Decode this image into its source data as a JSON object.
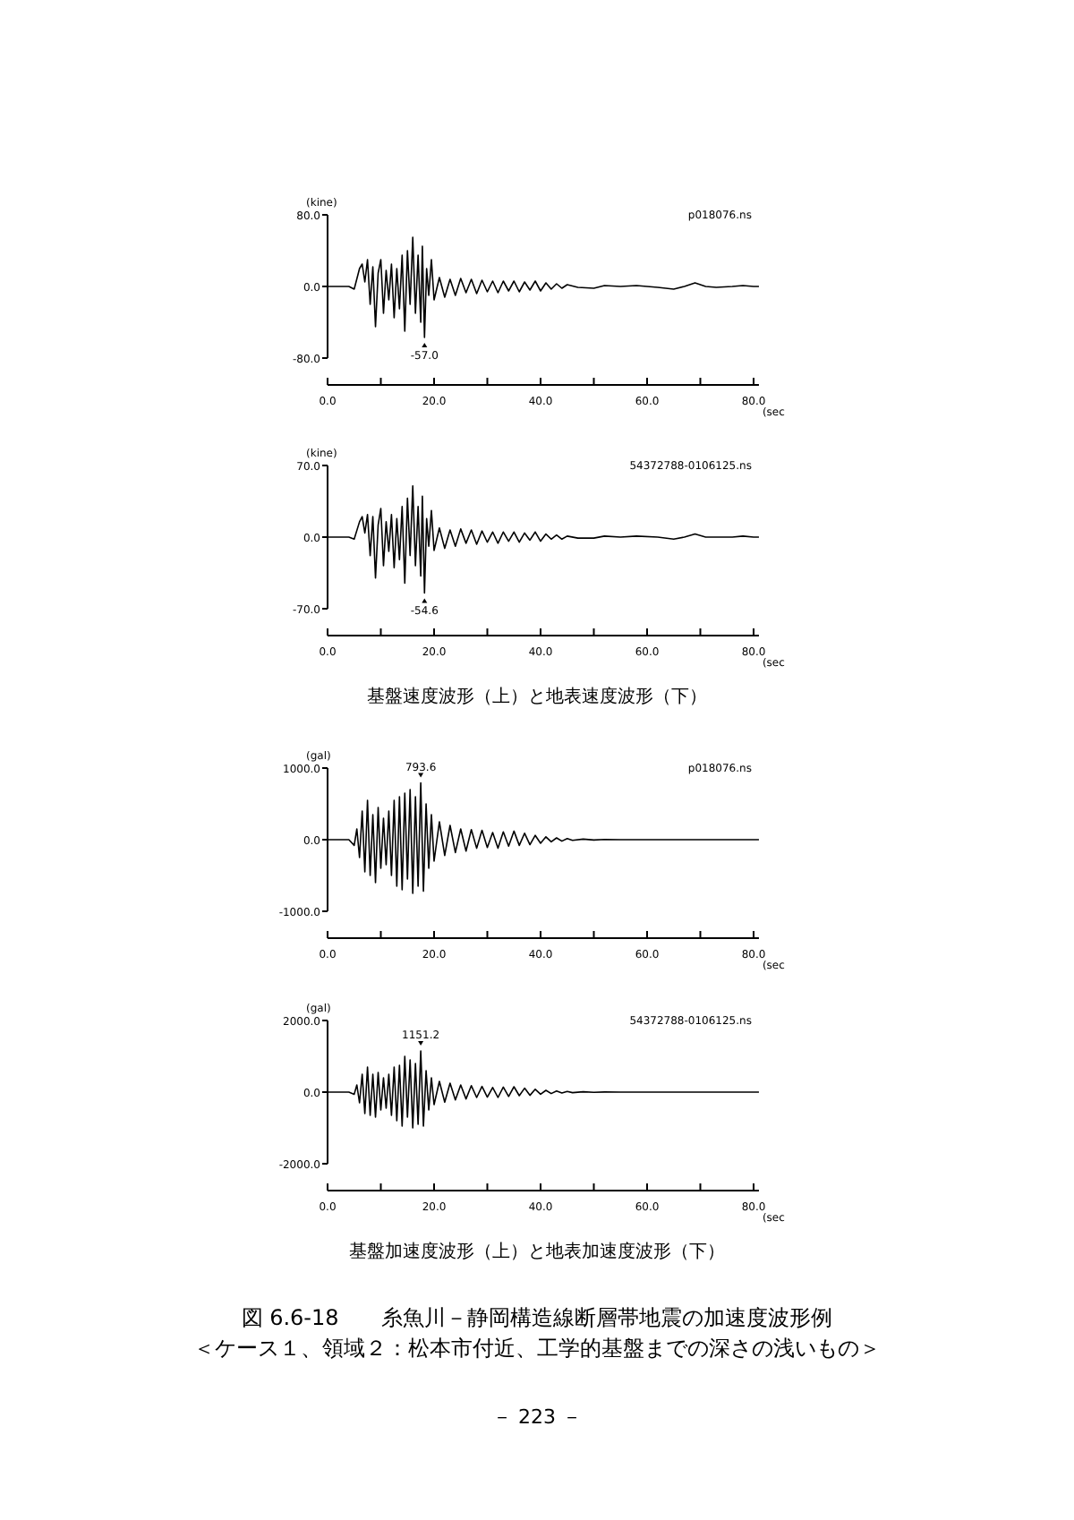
{
  "chart_data": [
    {
      "type": "line",
      "xlabel": "(sec",
      "ylabel": "(kine)",
      "xlim": [
        0,
        81
      ],
      "ylim": [
        -80,
        80
      ],
      "xticks": [
        {
          "value": 0,
          "label": "0.0"
        },
        {
          "value": 10,
          "label": null
        },
        {
          "value": 20,
          "label": "20.0"
        },
        {
          "value": 30,
          "label": null
        },
        {
          "value": 40,
          "label": "40.0"
        },
        {
          "value": 50,
          "label": null
        },
        {
          "value": 60,
          "label": "60.0"
        },
        {
          "value": 70,
          "label": null
        },
        {
          "value": 80,
          "label": "80.0"
        }
      ],
      "yticks": [
        {
          "value": -80,
          "label": "-80.0"
        },
        {
          "value": 0,
          "label": "0.0"
        },
        {
          "value": 80,
          "label": "80.0"
        }
      ],
      "annotations": [
        "p018076.ns"
      ],
      "series": [
        {
          "color": "#000000",
          "x": [
            0,
            4,
            5,
            6,
            6.5,
            7,
            7.5,
            8,
            8.5,
            9,
            9.5,
            10,
            10.5,
            11,
            11.5,
            12,
            12.5,
            13,
            13.5,
            14,
            14.5,
            15,
            15.5,
            16,
            16.5,
            17,
            17.5,
            17.8,
            18.2,
            18.6,
            19,
            19.5,
            20,
            21,
            22,
            23,
            24,
            25,
            26,
            27,
            28,
            29,
            30,
            31,
            32,
            33,
            34,
            35,
            36,
            37,
            38,
            39,
            40,
            41,
            42,
            43,
            44,
            45,
            47,
            50,
            52,
            55,
            58,
            62,
            65,
            67,
            69,
            71,
            73,
            76,
            78,
            80,
            81
          ],
          "values": [
            0,
            0,
            -3,
            20,
            25,
            5,
            30,
            -20,
            22,
            -45,
            15,
            30,
            -30,
            18,
            -15,
            25,
            -35,
            20,
            -25,
            35,
            -50,
            40,
            -20,
            55,
            -30,
            35,
            -40,
            45,
            -57,
            20,
            -10,
            30,
            -15,
            10,
            -12,
            8,
            -10,
            9,
            -7,
            8,
            -8,
            7,
            -6,
            6,
            -7,
            6,
            -5,
            6,
            -6,
            5,
            -4,
            6,
            -5,
            4,
            -3,
            3,
            -2,
            2,
            -1,
            -2,
            1,
            0,
            1,
            -1,
            -3,
            0,
            4,
            0,
            -1,
            0,
            1,
            0,
            0
          ],
          "value_labels": [
            null,
            null,
            null,
            null,
            null,
            null,
            null,
            null,
            null,
            null,
            null,
            null,
            null,
            null,
            null,
            null,
            null,
            null,
            null,
            null,
            null,
            null,
            null,
            null,
            null,
            null,
            null,
            null,
            "-57.0",
            null,
            null,
            null,
            null,
            null,
            null,
            null,
            null,
            null,
            null,
            null,
            null,
            null,
            null,
            null,
            null,
            null,
            null,
            null,
            null,
            null,
            null,
            null,
            null,
            null,
            null,
            null,
            null,
            null,
            null,
            null,
            null,
            null,
            null,
            null,
            null,
            null,
            null,
            null,
            null,
            null,
            null,
            null,
            null
          ]
        }
      ]
    },
    {
      "type": "line",
      "xlabel": "(sec",
      "ylabel": "(kine)",
      "xlim": [
        0,
        81
      ],
      "ylim": [
        -70,
        70
      ],
      "xticks": [
        {
          "value": 0,
          "label": "0.0"
        },
        {
          "value": 10,
          "label": null
        },
        {
          "value": 20,
          "label": "20.0"
        },
        {
          "value": 30,
          "label": null
        },
        {
          "value": 40,
          "label": "40.0"
        },
        {
          "value": 50,
          "label": null
        },
        {
          "value": 60,
          "label": "60.0"
        },
        {
          "value": 70,
          "label": null
        },
        {
          "value": 80,
          "label": "80.0"
        }
      ],
      "yticks": [
        {
          "value": -70,
          "label": "-70.0"
        },
        {
          "value": 0,
          "label": "0.0"
        },
        {
          "value": 70,
          "label": "70.0"
        }
      ],
      "annotations": [
        "54372788-0106125.ns",
        "基盤速度波形（上）と地表速度波形（下）"
      ],
      "series": [
        {
          "color": "#000000",
          "x": [
            0,
            4,
            5,
            6,
            6.5,
            7,
            7.5,
            8,
            8.5,
            9,
            9.5,
            10,
            10.5,
            11,
            11.5,
            12,
            12.5,
            13,
            13.5,
            14,
            14.5,
            15,
            15.5,
            16,
            16.5,
            17,
            17.5,
            17.8,
            18.2,
            18.6,
            19,
            19.5,
            20,
            21,
            22,
            23,
            24,
            25,
            26,
            27,
            28,
            29,
            30,
            31,
            32,
            33,
            34,
            35,
            36,
            37,
            38,
            39,
            40,
            41,
            42,
            43,
            44,
            45,
            47,
            50,
            52,
            55,
            58,
            62,
            65,
            67,
            69,
            71,
            73,
            76,
            78,
            80,
            81
          ],
          "values": [
            0,
            0,
            -2,
            15,
            20,
            4,
            22,
            -18,
            20,
            -40,
            12,
            28,
            -28,
            15,
            -14,
            22,
            -30,
            18,
            -22,
            30,
            -45,
            38,
            -18,
            50,
            -28,
            30,
            -38,
            40,
            -54.6,
            18,
            -9,
            26,
            -13,
            9,
            -11,
            7,
            -9,
            8,
            -6,
            7,
            -7,
            6,
            -5,
            5,
            -6,
            5,
            -4,
            5,
            -5,
            4,
            -3,
            5,
            -4,
            3,
            -2,
            2,
            -2,
            1,
            -1,
            -1,
            1,
            0,
            1,
            0,
            -2,
            0,
            3,
            0,
            0,
            0,
            1,
            0,
            0
          ],
          "value_labels": [
            null,
            null,
            null,
            null,
            null,
            null,
            null,
            null,
            null,
            null,
            null,
            null,
            null,
            null,
            null,
            null,
            null,
            null,
            null,
            null,
            null,
            null,
            null,
            null,
            null,
            null,
            null,
            null,
            "-54.6",
            null,
            null,
            null,
            null,
            null,
            null,
            null,
            null,
            null,
            null,
            null,
            null,
            null,
            null,
            null,
            null,
            null,
            null,
            null,
            null,
            null,
            null,
            null,
            null,
            null,
            null,
            null,
            null,
            null,
            null,
            null,
            null,
            null,
            null,
            null,
            null,
            null,
            null,
            null,
            null,
            null,
            null,
            null,
            null
          ]
        }
      ]
    },
    {
      "type": "line",
      "xlabel": "(sec",
      "ylabel": "(gal)",
      "xlim": [
        0,
        81
      ],
      "ylim": [
        -1000,
        1000
      ],
      "xticks": [
        {
          "value": 0,
          "label": "0.0"
        },
        {
          "value": 10,
          "label": null
        },
        {
          "value": 20,
          "label": "20.0"
        },
        {
          "value": 30,
          "label": null
        },
        {
          "value": 40,
          "label": "40.0"
        },
        {
          "value": 50,
          "label": null
        },
        {
          "value": 60,
          "label": "60.0"
        },
        {
          "value": 70,
          "label": null
        },
        {
          "value": 80,
          "label": "80.0"
        }
      ],
      "yticks": [
        {
          "value": -1000,
          "label": "-1000.0"
        },
        {
          "value": 0,
          "label": "0.0"
        },
        {
          "value": 1000,
          "label": "1000.0"
        }
      ],
      "annotations": [
        "p018076.ns"
      ],
      "series": [
        {
          "color": "#000000",
          "x": [
            0,
            4,
            5,
            5.5,
            6,
            6.5,
            7,
            7.5,
            8,
            8.5,
            9,
            9.5,
            10,
            10.5,
            11,
            11.5,
            12,
            12.5,
            13,
            13.5,
            14,
            14.5,
            15,
            15.5,
            16,
            16.5,
            17,
            17.5,
            18,
            18.5,
            19,
            19.5,
            20,
            21,
            22,
            23,
            24,
            25,
            26,
            27,
            28,
            29,
            30,
            31,
            32,
            33,
            34,
            35,
            36,
            37,
            38,
            39,
            40,
            41,
            42,
            43,
            44,
            45,
            46,
            48,
            50,
            52,
            55,
            60,
            70,
            81
          ],
          "values": [
            0,
            0,
            -80,
            150,
            -250,
            400,
            -450,
            550,
            -500,
            350,
            -600,
            450,
            -400,
            300,
            -350,
            400,
            -500,
            550,
            -650,
            600,
            -700,
            650,
            -550,
            700,
            -750,
            600,
            -650,
            793.6,
            -720,
            500,
            -400,
            350,
            -300,
            250,
            -220,
            200,
            -180,
            150,
            -160,
            140,
            -120,
            130,
            -110,
            100,
            -120,
            110,
            -90,
            120,
            -80,
            90,
            -70,
            60,
            -50,
            40,
            -30,
            25,
            -20,
            15,
            -10,
            8,
            -5,
            3,
            0,
            0,
            0,
            0
          ],
          "value_labels": [
            null,
            null,
            null,
            null,
            null,
            null,
            null,
            null,
            null,
            null,
            null,
            null,
            null,
            null,
            null,
            null,
            null,
            null,
            null,
            null,
            null,
            null,
            null,
            null,
            null,
            null,
            null,
            "793.6",
            null,
            null,
            null,
            null,
            null,
            null,
            null,
            null,
            null,
            null,
            null,
            null,
            null,
            null,
            null,
            null,
            null,
            null,
            null,
            null,
            null,
            null,
            null,
            null,
            null,
            null,
            null,
            null,
            null,
            null,
            null,
            null,
            null,
            null,
            null,
            null,
            null,
            null
          ]
        }
      ]
    },
    {
      "type": "line",
      "xlabel": "(sec",
      "ylabel": "(gal)",
      "xlim": [
        0,
        81
      ],
      "ylim": [
        -2000,
        2000
      ],
      "xticks": [
        {
          "value": 0,
          "label": "0.0"
        },
        {
          "value": 10,
          "label": null
        },
        {
          "value": 20,
          "label": "20.0"
        },
        {
          "value": 30,
          "label": null
        },
        {
          "value": 40,
          "label": "40.0"
        },
        {
          "value": 50,
          "label": null
        },
        {
          "value": 60,
          "label": "60.0"
        },
        {
          "value": 70,
          "label": null
        },
        {
          "value": 80,
          "label": "80.0"
        }
      ],
      "yticks": [
        {
          "value": -2000,
          "label": "-2000.0"
        },
        {
          "value": 0,
          "label": "0.0"
        },
        {
          "value": 2000,
          "label": "2000.0"
        }
      ],
      "annotations": [
        "54372788-0106125.ns",
        "基盤加速度波形（上）と地表加速度波形（下）",
        "図 6.6-18　　糸魚川－静岡構造線断層帯地震の加速度波形例",
        "＜ケース１、領域２：松本市付近、工学的基盤までの深さの浅いもの＞",
        "－ 223 －"
      ],
      "series": [
        {
          "color": "#000000",
          "x": [
            0,
            4,
            5,
            5.5,
            6,
            6.5,
            7,
            7.5,
            8,
            8.5,
            9,
            9.5,
            10,
            10.5,
            11,
            11.5,
            12,
            12.5,
            13,
            13.5,
            14,
            14.5,
            15,
            15.5,
            16,
            16.5,
            17,
            17.5,
            18,
            18.5,
            19,
            19.5,
            20,
            21,
            22,
            23,
            24,
            25,
            26,
            27,
            28,
            29,
            30,
            31,
            32,
            33,
            34,
            35,
            36,
            37,
            38,
            39,
            40,
            41,
            42,
            43,
            44,
            45,
            46,
            48,
            50,
            52,
            55,
            60,
            70,
            81
          ],
          "values": [
            0,
            0,
            -60,
            200,
            -300,
            500,
            -600,
            700,
            -650,
            500,
            -700,
            550,
            -500,
            400,
            -450,
            500,
            -650,
            700,
            -800,
            750,
            -950,
            1000,
            -700,
            900,
            -1000,
            800,
            -900,
            1151.2,
            -950,
            600,
            -500,
            400,
            -350,
            300,
            -280,
            250,
            -220,
            200,
            -190,
            180,
            -150,
            160,
            -140,
            130,
            -150,
            140,
            -120,
            150,
            -100,
            110,
            -90,
            80,
            -60,
            50,
            -40,
            30,
            -25,
            20,
            -15,
            10,
            -5,
            3,
            0,
            0,
            0,
            0
          ],
          "value_labels": [
            null,
            null,
            null,
            null,
            null,
            null,
            null,
            null,
            null,
            null,
            null,
            null,
            null,
            null,
            null,
            null,
            null,
            null,
            null,
            null,
            null,
            null,
            null,
            null,
            null,
            null,
            null,
            "1151.2",
            null,
            null,
            null,
            null,
            null,
            null,
            null,
            null,
            null,
            null,
            null,
            null,
            null,
            null,
            null,
            null,
            null,
            null,
            null,
            null,
            null,
            null,
            null,
            null,
            null,
            null,
            null,
            null,
            null,
            null,
            null,
            null,
            null,
            null,
            null,
            null,
            null,
            null
          ]
        }
      ]
    }
  ]
}
